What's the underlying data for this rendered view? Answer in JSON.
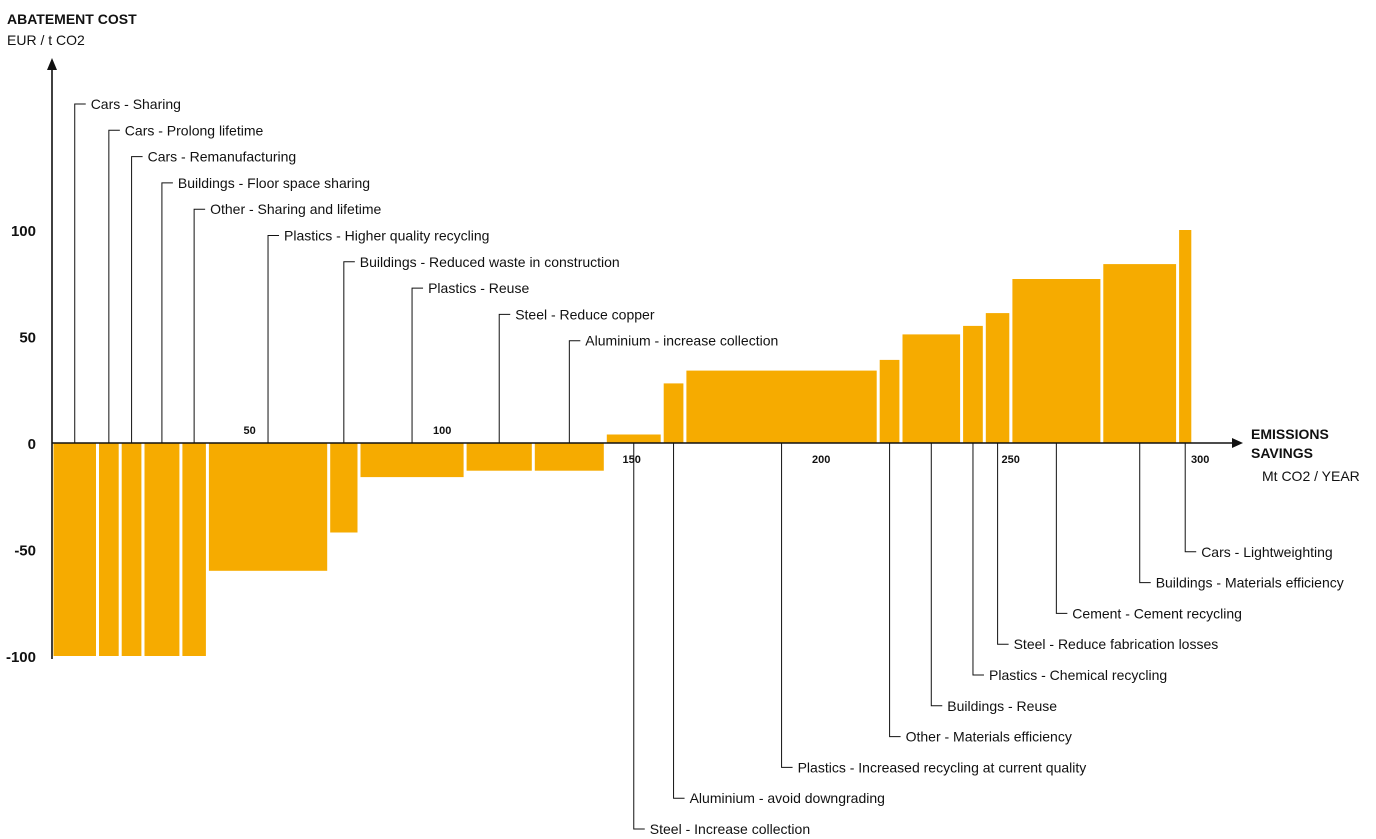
{
  "chart_data": {
    "type": "bar",
    "subtype": "marginal abatement cost curve",
    "y_title": "ABATEMENT COST",
    "y_unit": "EUR / t CO2",
    "x_title_line1": "EMISSIONS",
    "x_title_line2": "SAVINGS",
    "x_unit": "Mt CO2 / YEAR",
    "ylim": [
      -100,
      100
    ],
    "xlim": [
      0,
      300
    ],
    "x_ticks": [
      50,
      100,
      150,
      200,
      250,
      300
    ],
    "y_ticks": [
      100,
      50,
      0,
      -50,
      -100
    ],
    "grid": false,
    "bar_color": "#f6ab00",
    "series": [
      {
        "name": "Cars - Sharing",
        "x_start": 0,
        "width": 12,
        "value": -100,
        "label_side": "top"
      },
      {
        "name": "Cars - Prolong lifetime",
        "x_start": 12,
        "width": 6,
        "value": -100,
        "label_side": "top"
      },
      {
        "name": "Cars - Remanufacturing",
        "x_start": 18,
        "width": 6,
        "value": -100,
        "label_side": "top"
      },
      {
        "name": "Buildings - Floor space sharing",
        "x_start": 24,
        "width": 10,
        "value": -100,
        "label_side": "top"
      },
      {
        "name": "Other - Sharing and lifetime",
        "x_start": 34,
        "width": 7,
        "value": -100,
        "label_side": "top"
      },
      {
        "name": "Plastics - Higher quality recycling",
        "x_start": 41,
        "width": 32,
        "value": -60,
        "label_side": "top"
      },
      {
        "name": "Buildings - Reduced waste in construction",
        "x_start": 73,
        "width": 8,
        "value": -42,
        "label_side": "top"
      },
      {
        "name": "Plastics - Reuse",
        "x_start": 81,
        "width": 28,
        "value": -16,
        "label_side": "top"
      },
      {
        "name": "Steel - Reduce copper",
        "x_start": 109,
        "width": 18,
        "value": -13,
        "label_side": "top"
      },
      {
        "name": "Aluminium - increase collection",
        "x_start": 127,
        "width": 19,
        "value": -13,
        "label_side": "top"
      },
      {
        "name": "Steel - Increase collection",
        "x_start": 146,
        "width": 15,
        "value": 4,
        "label_side": "bottom"
      },
      {
        "name": "Aluminium - avoid downgrading",
        "x_start": 161,
        "width": 6,
        "value": 28,
        "label_side": "bottom"
      },
      {
        "name": "Plastics - Increased recycling at current quality",
        "x_start": 167,
        "width": 51,
        "value": 34,
        "label_side": "bottom"
      },
      {
        "name": "Other - Materials efficiency",
        "x_start": 218,
        "width": 6,
        "value": 39,
        "label_side": "bottom"
      },
      {
        "name": "Buildings - Reuse",
        "x_start": 224,
        "width": 16,
        "value": 51,
        "label_side": "bottom"
      },
      {
        "name": "Plastics - Chemical recycling",
        "x_start": 240,
        "width": 6,
        "value": 55,
        "label_side": "bottom"
      },
      {
        "name": "Steel - Reduce fabrication losses",
        "x_start": 246,
        "width": 7,
        "value": 61,
        "label_side": "bottom"
      },
      {
        "name": "Cement - Cement recycling",
        "x_start": 253,
        "width": 24,
        "value": 77,
        "label_side": "bottom"
      },
      {
        "name": "Buildings - Materials efficiency",
        "x_start": 277,
        "width": 20,
        "value": 84,
        "label_side": "bottom"
      },
      {
        "name": "Cars - Lightweighting",
        "x_start": 297,
        "width": 4,
        "value": 100,
        "label_side": "bottom"
      }
    ]
  }
}
